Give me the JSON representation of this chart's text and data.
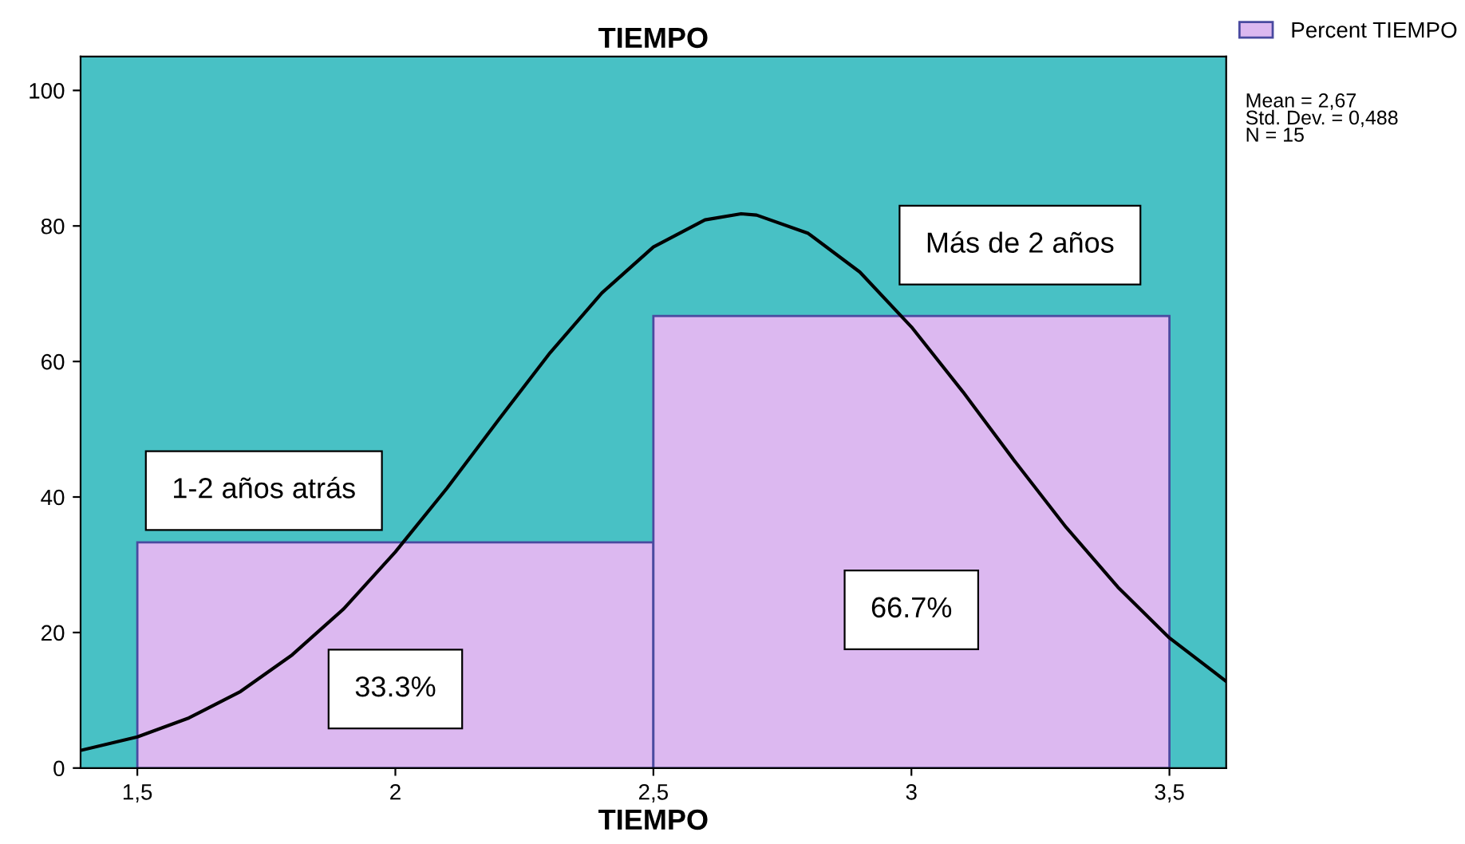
{
  "chart_data": {
    "type": "histogram",
    "title": "TIEMPO",
    "xlabel": "TIEMPO",
    "bins": [
      1.5,
      2.5,
      3.5
    ],
    "series": [
      {
        "name": "Percent TIEMPO",
        "color": "#dcb8f0",
        "values": [
          33.3,
          66.7
        ],
        "value_labels": [
          "33.3%",
          "66.7%"
        ]
      },
      {
        "type": "line",
        "color": "#000000",
        "x": [
          1.39,
          1.5,
          1.6,
          1.7,
          1.8,
          1.9,
          2.0,
          2.1,
          2.2,
          2.3,
          2.4,
          2.5,
          2.6,
          2.67,
          2.7,
          2.8,
          2.9,
          3.0,
          3.1,
          3.2,
          3.3,
          3.4,
          3.5,
          3.61
        ],
        "values": [
          2.6,
          4.6,
          7.4,
          11.3,
          16.7,
          23.5,
          31.9,
          41.3,
          51.4,
          61.3,
          70.1,
          76.9,
          80.9,
          81.8,
          81.6,
          78.9,
          73.2,
          65.1,
          55.5,
          45.3,
          35.5,
          26.7,
          19.2,
          12.8
        ]
      }
    ],
    "xlim": [
      1.39,
      3.61
    ],
    "ylim": [
      0,
      105
    ],
    "xticks": [
      {
        "value": 1.5,
        "label": "1,5"
      },
      2,
      {
        "value": 2.5,
        "label": "2,5"
      },
      3,
      {
        "value": 3.5,
        "label": "3,5"
      }
    ],
    "yticks": [
      0,
      20,
      40,
      60,
      80,
      100
    ],
    "grid": false,
    "legend": "top right",
    "marker": "none",
    "line_style": "solid",
    "annotations": [
      "1-2 años atrás",
      "Más de 2 años",
      "Mean = 2,67\nStd. Dev. = 0,488\nN = 15"
    ]
  }
}
